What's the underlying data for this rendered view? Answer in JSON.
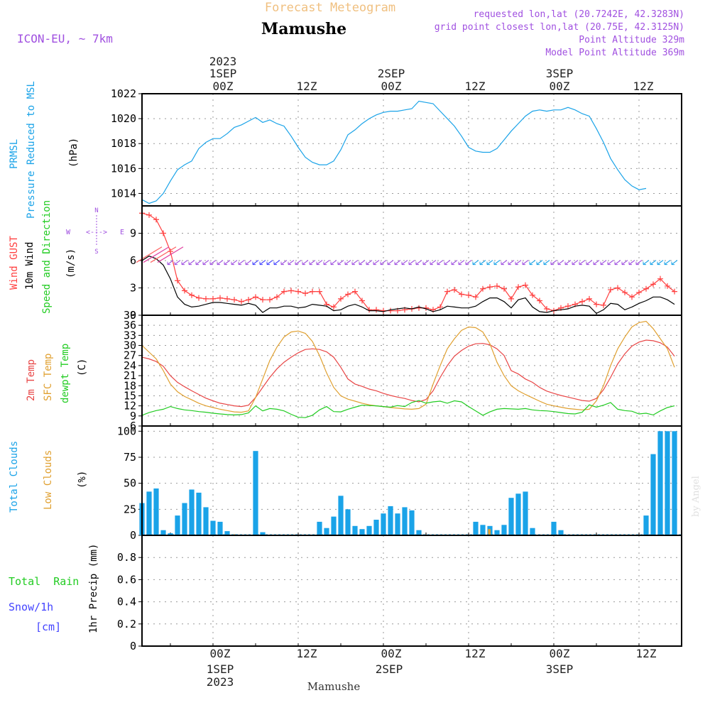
{
  "header": {
    "banner": "Forecast Meteogram",
    "location": "Mamushe",
    "model": "ICON-EU, ~ 7km",
    "requested": "requested lon,lat (20.7242E, 42.3283N)",
    "gridpoint": "grid point closest lon,lat (20.75E, 42.3125N)",
    "point_alt": "Point Altitude 329m",
    "model_alt": "Model Point Altitude 369m"
  },
  "footer": {
    "location": "Mamushe",
    "credit": "by Angel"
  },
  "colors": {
    "pressure": "#1aa3e8",
    "gust": "#ff4040",
    "wind": "#000000",
    "temp2m": "#e84545",
    "sfc": "#e0a030",
    "dew": "#22cc22",
    "total_cloud": "#1aa3e8",
    "low_cloud": "#e0a030",
    "rain": "#22cc22",
    "snow": "#4444ff",
    "purple": "#a050e0",
    "header_orange": "#f0c080"
  },
  "time_axis": {
    "top_row1": [
      "2023",
      "",
      "",
      "",
      "",
      ""
    ],
    "top_row2": [
      "1SEP",
      "",
      "2SEP",
      "",
      "3SEP",
      ""
    ],
    "top_row3": [
      "00Z",
      "12Z",
      "00Z",
      "12Z",
      "00Z",
      "12Z"
    ],
    "bottom_row1": [
      "00Z",
      "12Z",
      "00Z",
      "12Z",
      "00Z",
      "12Z"
    ],
    "bottom_row2": [
      "1SEP",
      "",
      "2SEP",
      "",
      "3SEP",
      ""
    ],
    "bottom_row3": [
      "2023",
      "",
      "",
      "",
      "",
      ""
    ]
  },
  "compass": {
    "n": "N",
    "s": "S",
    "w": "W",
    "e": "E",
    "arrow": "<--->"
  },
  "chart_data": [
    {
      "type": "line",
      "side_labels": [
        "PRMSL",
        "Pressure Reduced to MSL"
      ],
      "ylabel": "(hPa)",
      "ylim": [
        1013,
        1022
      ],
      "yticks": [
        1014,
        1016,
        1018,
        1020,
        1022
      ],
      "x_hours": [
        -10,
        -9,
        -8,
        -7,
        -6,
        -5,
        -4,
        -3,
        -2,
        -1,
        0,
        1,
        2,
        3,
        4,
        5,
        6,
        7,
        8,
        9,
        10,
        11,
        12,
        13,
        14,
        15,
        16,
        17,
        18,
        19,
        20,
        21,
        22,
        23,
        24,
        25,
        26,
        27,
        28,
        29,
        30,
        31,
        32,
        33,
        34,
        35,
        36,
        37,
        38,
        39,
        40,
        41,
        42,
        43,
        44,
        45,
        46,
        47,
        48,
        49,
        50,
        51,
        52,
        53,
        54,
        55,
        56,
        57,
        58,
        59,
        60,
        61,
        62,
        63,
        64,
        65
      ],
      "series": [
        {
          "color_key": "pressure",
          "values": [
            1013.5,
            1013.2,
            1013.4,
            1014.0,
            1015.0,
            1015.9,
            1016.3,
            1016.6,
            1017.6,
            1018.1,
            1018.4,
            1018.4,
            1018.8,
            1019.3,
            1019.5,
            1019.8,
            1020.1,
            1019.7,
            1019.9,
            1019.6,
            1019.4,
            1018.6,
            1017.7,
            1016.9,
            1016.5,
            1016.3,
            1016.3,
            1016.6,
            1017.5,
            1018.7,
            1019.1,
            1019.6,
            1020.0,
            1020.3,
            1020.5,
            1020.6,
            1020.6,
            1020.7,
            1020.8,
            1021.4,
            1021.3,
            1021.2,
            1020.6,
            1020.0,
            1019.4,
            1018.6,
            1017.7,
            1017.4,
            1017.3,
            1017.3,
            1017.6,
            1018.3,
            1019.0,
            1019.6,
            1020.2,
            1020.6,
            1020.7,
            1020.6,
            1020.7,
            1020.7,
            1020.9,
            1020.7,
            1020.4,
            1020.2,
            1019.2,
            1018.1,
            1016.8,
            1015.9,
            1015.1,
            1014.6,
            1014.3,
            1014.4
          ]
        }
      ]
    },
    {
      "type": "line",
      "side_labels": [
        "Wind GUST",
        "10m Wind",
        "Speed and Direction"
      ],
      "ylabel": "(m/s)",
      "ylim": [
        0,
        12
      ],
      "yticks": [
        0,
        3,
        6,
        9
      ],
      "x_hours": [
        -10,
        -9,
        -8,
        -7,
        -6,
        -5,
        -4,
        -3,
        -2,
        -1,
        0,
        1,
        2,
        3,
        4,
        5,
        6,
        7,
        8,
        9,
        10,
        11,
        12,
        13,
        14,
        15,
        16,
        17,
        18,
        19,
        20,
        21,
        22,
        23,
        24,
        25,
        26,
        27,
        28,
        29,
        30,
        31,
        32,
        33,
        34,
        35,
        36,
        37,
        38,
        39,
        40,
        41,
        42,
        43,
        44,
        45,
        46,
        47,
        48,
        49,
        50,
        51,
        52,
        53,
        54,
        55,
        56,
        57,
        58,
        59,
        60,
        61,
        62,
        63,
        64,
        65
      ],
      "series": [
        {
          "name": "Wind GUST",
          "color_key": "gust",
          "marker": "+",
          "values": [
            11.2,
            11.0,
            10.5,
            9.0,
            7.0,
            3.8,
            2.7,
            2.2,
            1.9,
            1.8,
            1.8,
            1.9,
            1.8,
            1.7,
            1.5,
            1.7,
            2.0,
            1.7,
            1.7,
            2.0,
            2.6,
            2.7,
            2.6,
            2.4,
            2.6,
            2.6,
            1.2,
            0.9,
            1.8,
            2.3,
            2.6,
            1.6,
            0.6,
            0.6,
            0.5,
            0.5,
            0.5,
            0.6,
            0.7,
            0.8,
            0.8,
            0.6,
            0.9,
            2.6,
            2.8,
            2.3,
            2.2,
            2.0,
            2.9,
            3.1,
            3.2,
            2.9,
            1.8,
            3.1,
            3.3,
            2.2,
            1.6,
            0.7,
            0.5,
            0.8,
            1.0,
            1.2,
            1.5,
            1.8,
            1.2,
            1.1,
            2.8,
            3.0,
            2.5,
            2.0,
            2.5,
            2.9,
            3.4,
            4.0,
            3.2,
            2.6
          ]
        },
        {
          "name": "10m Wind",
          "color_key": "wind",
          "values": [
            6.0,
            6.5,
            6.2,
            5.5,
            4.0,
            2.0,
            1.2,
            0.9,
            1.0,
            1.2,
            1.4,
            1.4,
            1.3,
            1.2,
            1.1,
            1.3,
            1.1,
            0.3,
            0.8,
            0.8,
            1.0,
            1.0,
            0.8,
            0.9,
            1.2,
            1.1,
            1.0,
            0.5,
            0.6,
            1.0,
            1.2,
            0.9,
            0.5,
            0.5,
            0.4,
            0.6,
            0.7,
            0.8,
            0.7,
            0.9,
            0.7,
            0.4,
            0.6,
            1.0,
            0.9,
            0.8,
            0.8,
            1.0,
            1.5,
            1.9,
            1.9,
            1.5,
            0.8,
            1.7,
            1.9,
            0.9,
            0.4,
            0.3,
            0.5,
            0.6,
            0.7,
            1.0,
            1.1,
            1.0,
            0.2,
            0.6,
            1.3,
            1.2,
            0.6,
            0.9,
            1.3,
            1.6,
            2.0,
            2.0,
            1.7,
            1.2
          ]
        }
      ],
      "barbs_row_value": 5.8
    },
    {
      "type": "line",
      "side_labels": [
        "2m Temp",
        "SFC Temp",
        "dewpt Temp"
      ],
      "ylabel": "(C)",
      "ylim": [
        6,
        39
      ],
      "yticks": [
        6,
        9,
        12,
        15,
        18,
        21,
        24,
        27,
        30,
        33,
        36,
        39
      ],
      "x_hours": [
        -10,
        -9,
        -8,
        -7,
        -6,
        -5,
        -4,
        -3,
        -2,
        -1,
        0,
        1,
        2,
        3,
        4,
        5,
        6,
        7,
        8,
        9,
        10,
        11,
        12,
        13,
        14,
        15,
        16,
        17,
        18,
        19,
        20,
        21,
        22,
        23,
        24,
        25,
        26,
        27,
        28,
        29,
        30,
        31,
        32,
        33,
        34,
        35,
        36,
        37,
        38,
        39,
        40,
        41,
        42,
        43,
        44,
        45,
        46,
        47,
        48,
        49,
        50,
        51,
        52,
        53,
        54,
        55,
        56,
        57,
        58,
        59,
        60,
        61,
        62,
        63,
        64,
        65
      ],
      "series": [
        {
          "name": "2m Temp",
          "color_key": "temp2m",
          "values": [
            26.5,
            26.0,
            25.2,
            23.8,
            21.0,
            19.0,
            17.7,
            16.5,
            15.4,
            14.3,
            13.5,
            12.8,
            12.4,
            12.0,
            11.8,
            12.2,
            14.5,
            17.5,
            20.5,
            23.0,
            25.0,
            26.5,
            27.8,
            28.8,
            29.0,
            28.8,
            28.1,
            26.5,
            23.5,
            20.0,
            18.5,
            17.8,
            17.0,
            16.5,
            15.7,
            15.1,
            14.6,
            14.2,
            13.6,
            13.2,
            13.9,
            16.5,
            20.5,
            24.0,
            26.8,
            28.5,
            29.8,
            30.5,
            30.6,
            30.2,
            29.0,
            27.0,
            22.5,
            21.5,
            20.0,
            19.0,
            17.5,
            16.4,
            15.7,
            15.1,
            14.6,
            14.1,
            13.6,
            13.4,
            14.2,
            16.8,
            20.5,
            24.5,
            27.5,
            29.8,
            31.0,
            31.6,
            31.4,
            30.8,
            29.5,
            26.8
          ]
        },
        {
          "name": "SFC Temp",
          "color_key": "sfc",
          "values": [
            30.0,
            28.0,
            26.0,
            22.5,
            18.5,
            16.2,
            14.8,
            13.8,
            12.8,
            12.0,
            11.5,
            11.0,
            10.6,
            10.2,
            10.1,
            10.5,
            14.5,
            20.0,
            25.5,
            29.5,
            32.5,
            34.0,
            34.3,
            33.6,
            31.2,
            27.0,
            21.8,
            17.5,
            15.0,
            14.0,
            13.4,
            12.8,
            12.3,
            12.0,
            11.8,
            11.5,
            11.3,
            11.1,
            11.0,
            11.2,
            12.5,
            18.5,
            24.0,
            29.0,
            32.0,
            34.5,
            35.5,
            35.3,
            34.0,
            30.5,
            25.0,
            21.0,
            18.0,
            16.5,
            15.4,
            14.4,
            13.4,
            12.5,
            12.0,
            11.6,
            11.2,
            11.0,
            10.8,
            11.0,
            13.5,
            18.0,
            24.0,
            29.0,
            32.5,
            35.5,
            36.8,
            37.2,
            35.0,
            32.0,
            29.0,
            23.5
          ]
        },
        {
          "name": "dewpt Temp",
          "color_key": "dew",
          "values": [
            9.2,
            10.0,
            10.6,
            11.0,
            11.8,
            11.2,
            10.8,
            10.6,
            10.3,
            10.1,
            9.8,
            9.6,
            9.4,
            9.3,
            9.4,
            9.9,
            12.0,
            10.5,
            11.2,
            11.0,
            10.5,
            9.5,
            8.6,
            8.5,
            9.2,
            10.8,
            11.8,
            10.3,
            10.2,
            11.0,
            11.6,
            12.2,
            12.1,
            12.0,
            11.8,
            11.6,
            12.1,
            11.8,
            13.0,
            13.6,
            12.8,
            13.2,
            13.4,
            12.8,
            13.5,
            13.2,
            11.8,
            10.5,
            9.2,
            10.2,
            11.0,
            11.2,
            11.1,
            11.0,
            11.2,
            10.8,
            10.6,
            10.5,
            10.3,
            10.0,
            9.7,
            9.6,
            10.1,
            12.3,
            11.6,
            12.2,
            13.0,
            11.0,
            10.6,
            10.4,
            9.6,
            9.8,
            9.3,
            10.5,
            11.5,
            12.0
          ]
        }
      ]
    },
    {
      "type": "bar",
      "side_labels": [
        "Total Clouds",
        "Low Clouds"
      ],
      "ylabel": "(%)",
      "ylim": [
        0,
        105
      ],
      "yticks": [
        0,
        25,
        50,
        75,
        100
      ],
      "x_hours": [
        -10,
        -9,
        -8,
        -7,
        -6,
        -5,
        -4,
        -3,
        -2,
        -1,
        0,
        1,
        2,
        3,
        4,
        5,
        6,
        7,
        8,
        9,
        10,
        11,
        12,
        13,
        14,
        15,
        16,
        17,
        18,
        19,
        20,
        21,
        22,
        23,
        24,
        25,
        26,
        27,
        28,
        29,
        30,
        31,
        32,
        33,
        34,
        35,
        36,
        37,
        38,
        39,
        40,
        41,
        42,
        43,
        44,
        45,
        46,
        47,
        48,
        49,
        50,
        51,
        52,
        53,
        54,
        55,
        56,
        57,
        58,
        59,
        60,
        61,
        62,
        63,
        64,
        65
      ],
      "series": [
        {
          "name": "Total Clouds",
          "color_key": "total_cloud",
          "values": [
            31,
            42,
            45,
            5,
            2,
            19,
            31,
            44,
            41,
            27,
            14,
            13,
            4,
            1,
            0,
            0,
            81,
            3,
            0,
            0,
            0,
            0,
            0,
            0,
            0,
            13,
            7,
            18,
            38,
            25,
            9,
            6,
            9,
            15,
            21,
            28,
            21,
            27,
            24,
            5,
            0,
            0,
            0,
            0,
            0,
            0,
            0,
            13,
            10,
            9,
            5,
            10,
            36,
            40,
            42,
            7,
            0,
            0,
            13,
            5,
            0,
            0,
            0,
            0,
            0,
            0,
            0,
            0,
            0,
            0,
            0,
            19,
            78,
            100,
            100,
            100
          ]
        },
        {
          "name": "Low Clouds",
          "color_key": "low_cloud",
          "values": [
            0,
            0,
            0,
            0,
            0,
            0,
            0,
            0,
            0,
            0,
            0,
            0,
            0,
            1,
            0,
            0,
            0,
            0,
            0,
            0,
            0,
            0,
            0,
            0,
            0,
            0,
            0,
            0,
            0,
            0,
            0,
            0,
            0,
            0,
            0,
            0,
            0,
            0,
            0,
            0,
            0,
            0,
            0,
            0,
            0,
            0,
            0,
            0,
            0,
            6,
            0,
            0,
            0,
            0,
            0,
            0,
            0,
            0,
            0,
            0,
            0,
            0,
            0,
            0,
            0,
            0,
            0,
            0,
            0,
            0,
            0,
            0,
            0,
            0,
            0,
            0
          ]
        }
      ]
    },
    {
      "type": "bar",
      "side_labels": [
        "Total  Rain",
        "Snow/1h",
        "[cm]"
      ],
      "ylabel": "1hr Precip (mm)",
      "ylim": [
        0,
        1
      ],
      "yticks": [
        0,
        0.2,
        0.4,
        0.6,
        0.8
      ],
      "ytick_labels": [
        "0",
        "0.2",
        "0.4",
        "0.6",
        "0.8"
      ],
      "series": [
        {
          "name": "Total Rain",
          "color_key": "rain",
          "values": []
        },
        {
          "name": "Snow/1h",
          "color_key": "snow",
          "values": []
        }
      ]
    }
  ]
}
